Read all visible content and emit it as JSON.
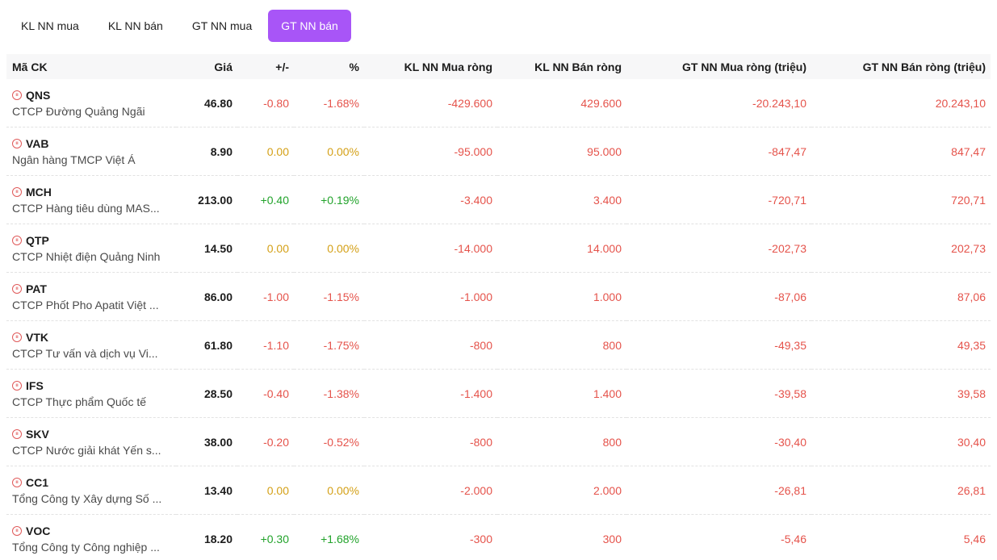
{
  "tabs": [
    {
      "label": "KL NN mua",
      "active": false
    },
    {
      "label": "KL NN bán",
      "active": false
    },
    {
      "label": "GT NN mua",
      "active": false
    },
    {
      "label": "GT NN bán",
      "active": true
    }
  ],
  "table": {
    "headers": [
      "Mã CK",
      "Giá",
      "+/-",
      "%",
      "KL NN Mua ròng",
      "KL NN Bán ròng",
      "GT NN Mua ròng (triệu)",
      "GT NN Bán ròng (triệu)"
    ],
    "rows": [
      {
        "symbol": "QNS",
        "company": "CTCP Đường Quảng Ngãi",
        "price": "46.80",
        "change": "-0.80",
        "pct": "-1.68%",
        "kl_mua": "-429.600",
        "kl_ban": "429.600",
        "gt_mua": "-20.243,10",
        "gt_ban": "20.243,10",
        "trend": "red"
      },
      {
        "symbol": "VAB",
        "company": "Ngân hàng TMCP Việt Á",
        "price": "8.90",
        "change": "0.00",
        "pct": "0.00%",
        "kl_mua": "-95.000",
        "kl_ban": "95.000",
        "gt_mua": "-847,47",
        "gt_ban": "847,47",
        "trend": "yellow"
      },
      {
        "symbol": "MCH",
        "company": "CTCP Hàng tiêu dùng MAS...",
        "price": "213.00",
        "change": "+0.40",
        "pct": "+0.19%",
        "kl_mua": "-3.400",
        "kl_ban": "3.400",
        "gt_mua": "-720,71",
        "gt_ban": "720,71",
        "trend": "green"
      },
      {
        "symbol": "QTP",
        "company": "CTCP Nhiệt điện Quảng Ninh",
        "price": "14.50",
        "change": "0.00",
        "pct": "0.00%",
        "kl_mua": "-14.000",
        "kl_ban": "14.000",
        "gt_mua": "-202,73",
        "gt_ban": "202,73",
        "trend": "yellow"
      },
      {
        "symbol": "PAT",
        "company": "CTCP Phốt Pho Apatit Việt ...",
        "price": "86.00",
        "change": "-1.00",
        "pct": "-1.15%",
        "kl_mua": "-1.000",
        "kl_ban": "1.000",
        "gt_mua": "-87,06",
        "gt_ban": "87,06",
        "trend": "red"
      },
      {
        "symbol": "VTK",
        "company": "CTCP Tư vấn và dịch vụ Vi...",
        "price": "61.80",
        "change": "-1.10",
        "pct": "-1.75%",
        "kl_mua": "-800",
        "kl_ban": "800",
        "gt_mua": "-49,35",
        "gt_ban": "49,35",
        "trend": "red"
      },
      {
        "symbol": "IFS",
        "company": "CTCP Thực phẩm Quốc tế",
        "price": "28.50",
        "change": "-0.40",
        "pct": "-1.38%",
        "kl_mua": "-1.400",
        "kl_ban": "1.400",
        "gt_mua": "-39,58",
        "gt_ban": "39,58",
        "trend": "red"
      },
      {
        "symbol": "SKV",
        "company": "CTCP Nước giải khát Yến s...",
        "price": "38.00",
        "change": "-0.20",
        "pct": "-0.52%",
        "kl_mua": "-800",
        "kl_ban": "800",
        "gt_mua": "-30,40",
        "gt_ban": "30,40",
        "trend": "red"
      },
      {
        "symbol": "CC1",
        "company": "Tổng Công ty Xây dựng Số ...",
        "price": "13.40",
        "change": "0.00",
        "pct": "0.00%",
        "kl_mua": "-2.000",
        "kl_ban": "2.000",
        "gt_mua": "-26,81",
        "gt_ban": "26,81",
        "trend": "yellow"
      },
      {
        "symbol": "VOC",
        "company": "Tổng Công ty Công nghiệp ...",
        "price": "18.20",
        "change": "+0.30",
        "pct": "+1.68%",
        "kl_mua": "-300",
        "kl_ban": "300",
        "gt_mua": "-5,46",
        "gt_ban": "5,46",
        "trend": "green"
      }
    ]
  },
  "icon": {
    "name": "pill-icon",
    "color": "#e05a5a"
  },
  "colors": {
    "accent": "#a855f7",
    "down": "#e5534b",
    "flat": "#d4a017",
    "up": "#22a32b"
  }
}
